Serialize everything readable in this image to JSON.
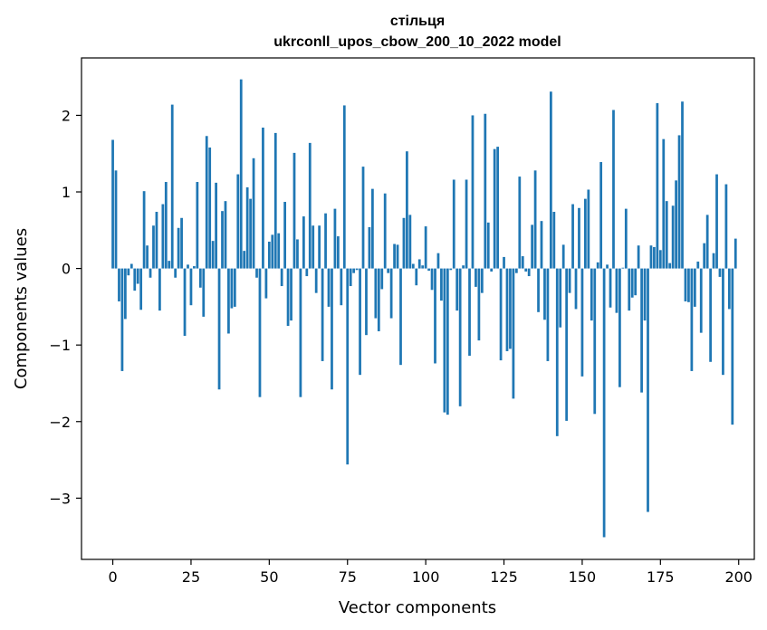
{
  "chart_data": {
    "type": "bar",
    "title": "стільця",
    "subtitle": "ukrconll_upos_cbow_200_10_2022 model",
    "xlabel": "Vector components",
    "ylabel": "Components values",
    "xlim": [
      -10,
      205
    ],
    "ylim": [
      -3.8,
      2.75
    ],
    "xticks": [
      0,
      25,
      50,
      75,
      100,
      125,
      150,
      175,
      200
    ],
    "yticks": [
      -3,
      -2,
      -1,
      0,
      1,
      2
    ],
    "bar_color": "#1f77b4",
    "grid": false,
    "legend": "none",
    "values": [
      1.68,
      1.28,
      -0.43,
      -1.34,
      -0.66,
      -0.09,
      0.06,
      -0.29,
      -0.2,
      -0.54,
      1.01,
      0.3,
      -0.12,
      0.56,
      0.74,
      -0.55,
      0.84,
      1.13,
      0.1,
      2.14,
      -0.12,
      0.53,
      0.66,
      -0.88,
      0.05,
      -0.48,
      0.03,
      1.13,
      -0.25,
      -0.63,
      1.73,
      1.58,
      0.36,
      1.12,
      -1.58,
      0.75,
      0.88,
      -0.85,
      -0.52,
      -0.5,
      1.23,
      2.47,
      0.23,
      1.06,
      0.91,
      1.44,
      -0.12,
      -1.68,
      1.84,
      -0.39,
      0.35,
      0.44,
      1.77,
      0.46,
      -0.23,
      0.87,
      -0.75,
      -0.68,
      1.51,
      0.38,
      -1.68,
      0.68,
      -0.1,
      1.64,
      0.56,
      -0.32,
      0.56,
      -1.21,
      0.72,
      -0.5,
      -1.58,
      0.78,
      0.42,
      -0.48,
      2.13,
      -2.56,
      -0.23,
      -0.06,
      -0.02,
      -1.39,
      1.33,
      -0.87,
      0.54,
      1.04,
      -0.65,
      -0.82,
      -0.27,
      0.98,
      -0.06,
      -0.65,
      0.32,
      0.31,
      -1.26,
      0.66,
      1.53,
      0.7,
      0.06,
      -0.22,
      0.12,
      0.04,
      0.55,
      -0.03,
      -0.28,
      -1.24,
      0.2,
      -0.42,
      -1.88,
      -1.91,
      -0.02,
      1.16,
      -0.55,
      -1.8,
      0.04,
      1.16,
      -1.14,
      2.0,
      -0.24,
      -0.94,
      -0.32,
      2.02,
      0.6,
      -0.04,
      1.56,
      1.59,
      -1.2,
      0.15,
      -1.08,
      -1.05,
      -1.7,
      -0.06,
      1.2,
      0.16,
      -0.04,
      -0.1,
      0.57,
      1.28,
      -0.57,
      0.62,
      -0.67,
      -1.21,
      2.31,
      0.74,
      -2.19,
      -0.77,
      0.31,
      -1.99,
      -0.32,
      0.84,
      -0.53,
      0.79,
      -1.41,
      0.91,
      1.03,
      -0.68,
      -1.9,
      0.08,
      1.39,
      -3.51,
      0.05,
      -0.51,
      2.07,
      -0.58,
      -1.55,
      0.01,
      0.78,
      -0.55,
      -0.38,
      -0.35,
      0.3,
      -1.62,
      -0.68,
      -3.18,
      0.3,
      0.28,
      2.16,
      0.24,
      1.69,
      0.88,
      0.07,
      0.82,
      1.15,
      1.74,
      2.18,
      -0.43,
      -0.44,
      -1.34,
      -0.5,
      0.09,
      -0.84,
      0.33,
      0.7,
      -1.22,
      0.2,
      1.23,
      -0.11,
      -1.39,
      1.1,
      -0.53,
      -2.04,
      0.39
    ]
  }
}
